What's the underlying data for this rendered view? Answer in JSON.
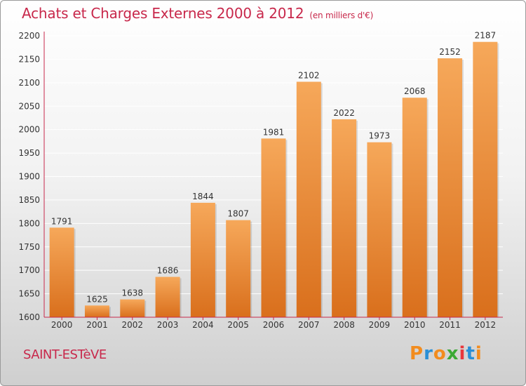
{
  "title": "Achats et Charges Externes 2000 à 2012",
  "unit_note": "(en milliers d'€)",
  "place_name": "SAINT-ESTèVE",
  "logo": {
    "text": "Proxiti",
    "letter_colors": [
      "#f28c1e",
      "#2a8fd6",
      "#f28c1e",
      "#3aa935",
      "#e8373c",
      "#2a8fd6",
      "#f28c1e"
    ]
  },
  "colors": {
    "accent": "#c8284b",
    "bar_light": "#f6a85a",
    "bar_dark": "#d96f1c",
    "axis": "#c8284b",
    "grid": "#ffffff"
  },
  "chart_data": {
    "type": "bar",
    "title": "Achats et Charges Externes 2000 à 2012",
    "subtitle": "(en milliers d'€)",
    "categories": [
      "2000",
      "2001",
      "2002",
      "2003",
      "2004",
      "2005",
      "2006",
      "2007",
      "2008",
      "2009",
      "2010",
      "2011",
      "2012"
    ],
    "values": [
      1791,
      1625,
      1638,
      1686,
      1844,
      1807,
      1981,
      2102,
      2022,
      1973,
      2068,
      2152,
      2187
    ],
    "ylim": [
      1600,
      2200
    ],
    "yticks": [
      1600,
      1650,
      1700,
      1750,
      1800,
      1850,
      1900,
      1950,
      2000,
      2050,
      2100,
      2150,
      2200
    ],
    "grid": true,
    "data_labels": true
  }
}
